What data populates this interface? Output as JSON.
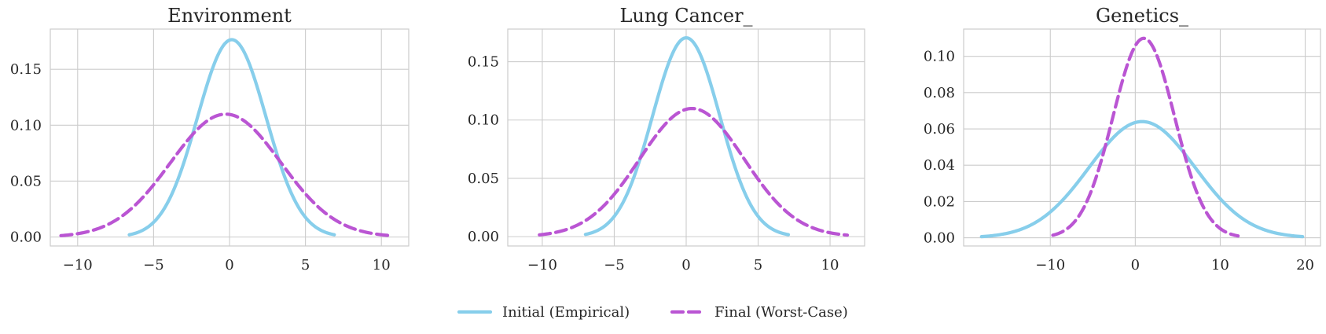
{
  "chart_data": [
    {
      "type": "line",
      "title": "Environment",
      "xlim": [
        -11.8,
        11.8
      ],
      "ylim": [
        -0.008,
        0.186
      ],
      "xticks": [
        -10,
        -5,
        0,
        5,
        10
      ],
      "xtick_labels": [
        "−10",
        "−5",
        "0",
        "5",
        "10"
      ],
      "yticks": [
        0,
        0.05,
        0.1,
        0.15
      ],
      "ytick_labels": [
        "0.00",
        "0.05",
        "0.10",
        "0.15"
      ],
      "grid": true,
      "series": [
        {
          "name": "Initial (Empirical)",
          "style": "solid",
          "color": "#87CEEB",
          "mean": 0.15,
          "std": 2.26,
          "x_range": [
            -6.6,
            6.9
          ]
        },
        {
          "name": "Final (Worst-Case)",
          "style": "dashed",
          "color": "#BA55D3",
          "mean": -0.25,
          "std": 3.63,
          "x_range": [
            -11.1,
            10.6
          ]
        }
      ]
    },
    {
      "type": "line",
      "title": "Lung Cancer_",
      "xlim": [
        -12.4,
        12.4
      ],
      "ylim": [
        -0.008,
        0.178
      ],
      "xticks": [
        -10,
        -5,
        0,
        5,
        10
      ],
      "xtick_labels": [
        "−10",
        "−5",
        "0",
        "5",
        "10"
      ],
      "yticks": [
        0,
        0.05,
        0.1,
        0.15
      ],
      "ytick_labels": [
        "0.00",
        "0.05",
        "0.10",
        "0.15"
      ],
      "grid": true,
      "series": [
        {
          "name": "Initial (Empirical)",
          "style": "solid",
          "color": "#87CEEB",
          "mean": 0.0,
          "std": 2.34,
          "x_range": [
            -7.0,
            7.1
          ]
        },
        {
          "name": "Final (Worst-Case)",
          "style": "dashed",
          "color": "#BA55D3",
          "mean": 0.4,
          "std": 3.63,
          "x_range": [
            -10.2,
            11.2
          ]
        }
      ]
    },
    {
      "type": "line",
      "title": "Genetics_",
      "xlim": [
        -20.2,
        21.8
      ],
      "ylim": [
        -0.0045,
        0.115
      ],
      "xticks": [
        -10,
        0,
        10,
        20
      ],
      "xtick_labels": [
        "−10",
        "0",
        "10",
        "20"
      ],
      "yticks": [
        0,
        0.02,
        0.04,
        0.06,
        0.08,
        0.1
      ],
      "ytick_labels": [
        "0.00",
        "0.02",
        "0.04",
        "0.06",
        "0.08",
        "0.10"
      ],
      "grid": true,
      "series": [
        {
          "name": "Initial (Empirical)",
          "style": "solid",
          "color": "#87CEEB",
          "mean": 0.8,
          "std": 6.23,
          "x_range": [
            -18.1,
            19.7
          ]
        },
        {
          "name": "Final (Worst-Case)",
          "style": "dashed",
          "color": "#BA55D3",
          "mean": 1.0,
          "std": 3.63,
          "x_range": [
            -9.7,
            12.1
          ]
        }
      ]
    }
  ],
  "legend": {
    "placement": "bottom-center",
    "entries": [
      {
        "label": "Initial (Empirical)",
        "style": "solid",
        "color": "#87CEEB"
      },
      {
        "label": "Final (Worst-Case)",
        "style": "dashed",
        "color": "#BA55D3"
      }
    ]
  }
}
